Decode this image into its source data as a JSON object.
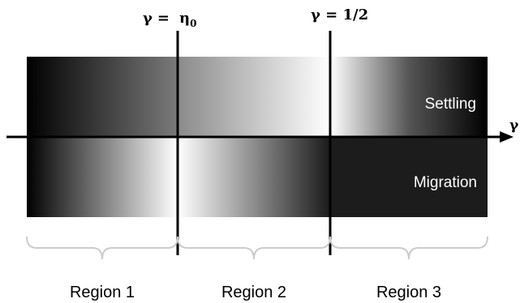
{
  "boundaries": {
    "left_symbol": "γ",
    "left_eq": "=",
    "left_value": "η",
    "left_value_sub": "0",
    "right_label": "γ = 1/2"
  },
  "axis": {
    "label": "γ"
  },
  "bands": {
    "top_label": "Settling",
    "bottom_label": "Migration"
  },
  "regions": [
    {
      "label": "Region 1"
    },
    {
      "label": "Region 2"
    },
    {
      "label": "Region 3"
    }
  ]
}
